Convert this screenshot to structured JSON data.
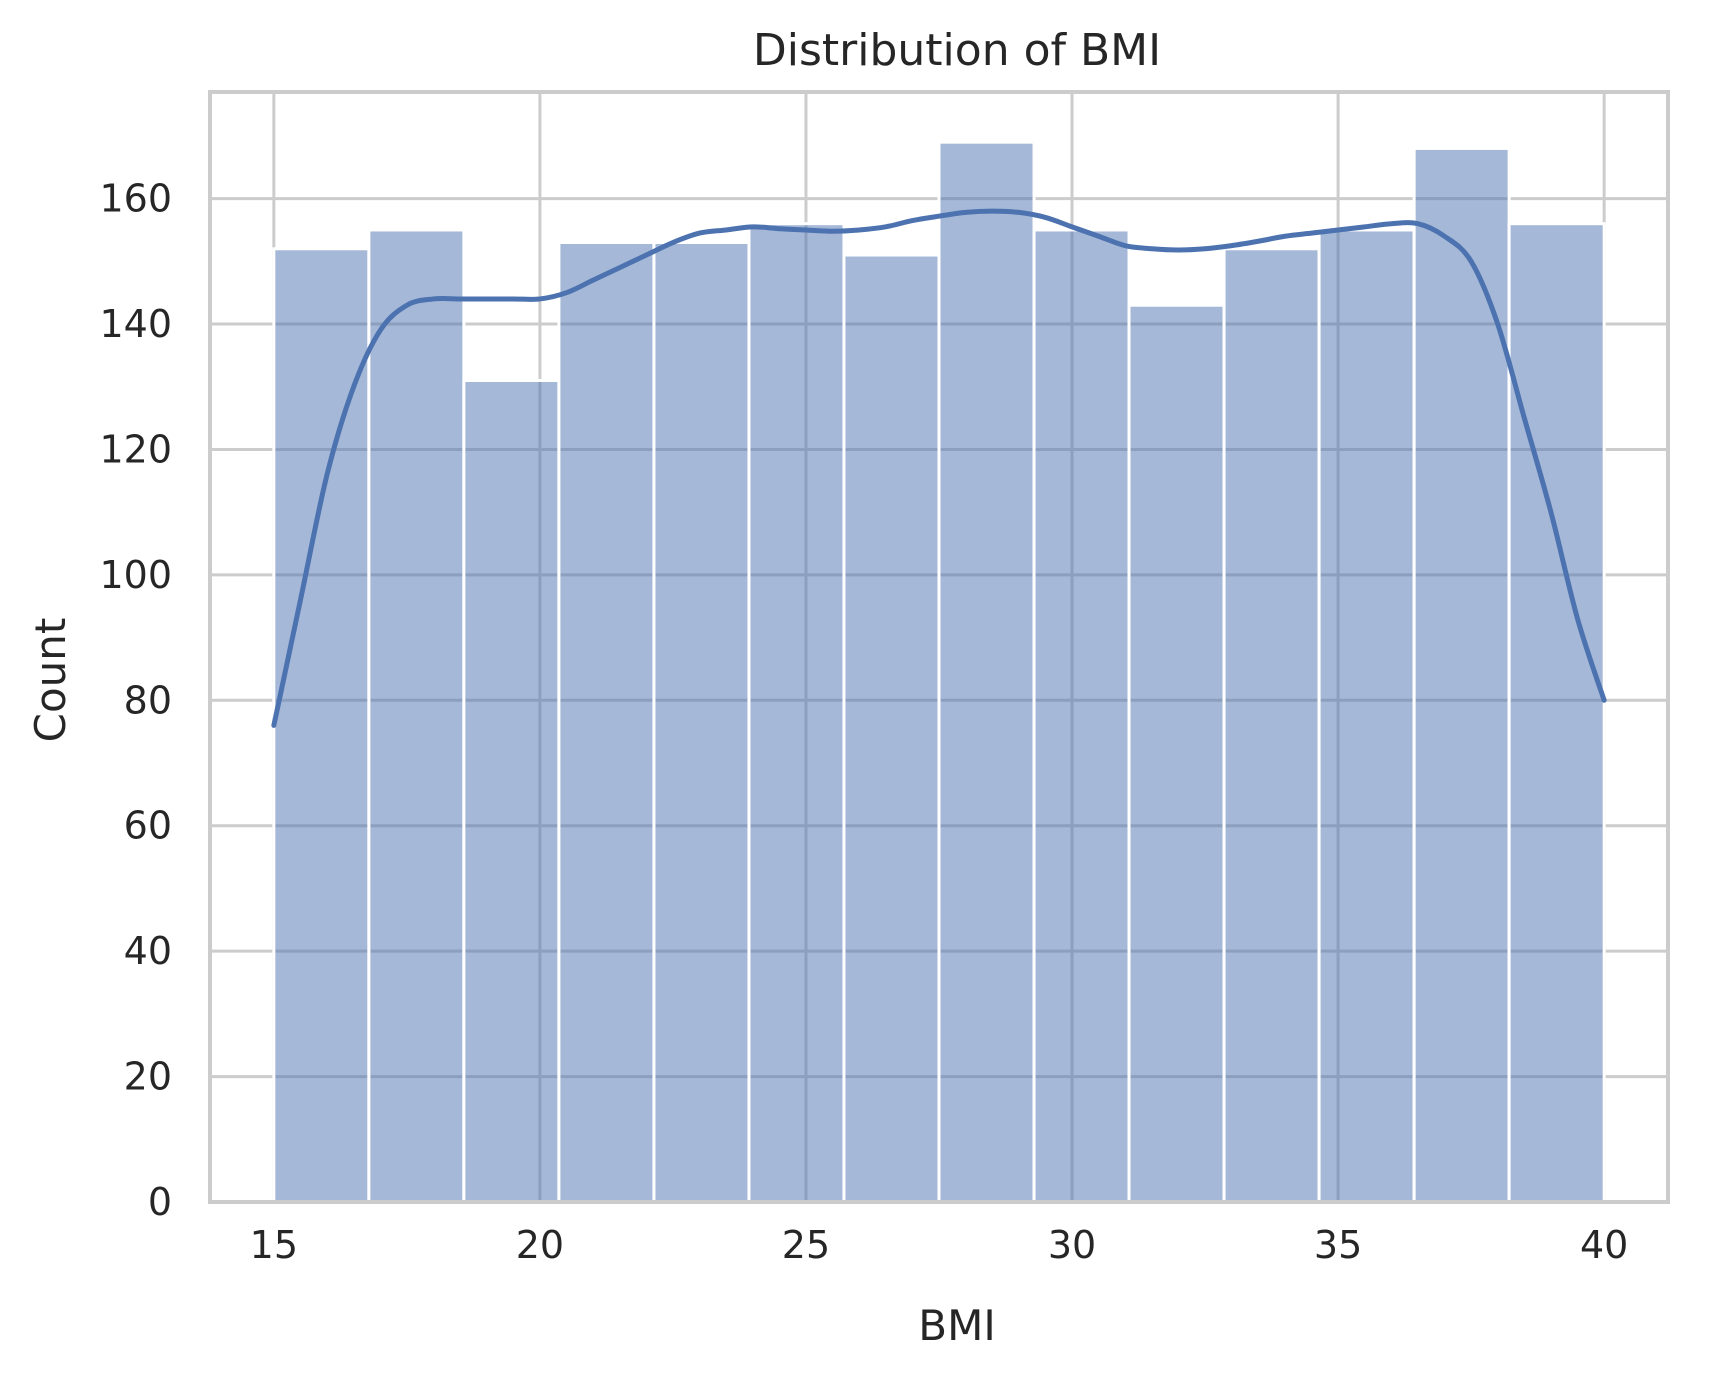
{
  "chart_data": {
    "type": "bar",
    "subtype": "histogram-with-kde",
    "title": "Distribution of BMI",
    "xlabel": "BMI",
    "ylabel": "Count",
    "xlim": [
      13.8,
      41.2
    ],
    "ylim": [
      0,
      177
    ],
    "x_ticks": [
      15,
      20,
      25,
      30,
      35,
      40
    ],
    "y_ticks": [
      0,
      20,
      40,
      60,
      80,
      100,
      120,
      140,
      160
    ],
    "grid": true,
    "bar_color": "#4c72b0",
    "bar_alpha": 0.5,
    "line_color": "#4c72b0",
    "grid_color": "#cccccc",
    "bins": [
      {
        "x0": 15.0,
        "x1": 16.786,
        "count": 152
      },
      {
        "x0": 16.786,
        "x1": 18.571,
        "count": 155
      },
      {
        "x0": 18.571,
        "x1": 20.357,
        "count": 131
      },
      {
        "x0": 20.357,
        "x1": 22.143,
        "count": 153
      },
      {
        "x0": 22.143,
        "x1": 23.929,
        "count": 153
      },
      {
        "x0": 23.929,
        "x1": 25.714,
        "count": 156
      },
      {
        "x0": 25.714,
        "x1": 27.5,
        "count": 151
      },
      {
        "x0": 27.5,
        "x1": 29.286,
        "count": 169
      },
      {
        "x0": 29.286,
        "x1": 31.071,
        "count": 155
      },
      {
        "x0": 31.071,
        "x1": 32.857,
        "count": 143
      },
      {
        "x0": 32.857,
        "x1": 34.643,
        "count": 152
      },
      {
        "x0": 34.643,
        "x1": 36.429,
        "count": 155
      },
      {
        "x0": 36.429,
        "x1": 38.214,
        "count": 168
      },
      {
        "x0": 38.214,
        "x1": 40.0,
        "count": 156
      }
    ],
    "kde": {
      "x": [
        15.0,
        15.5,
        16.0,
        16.5,
        17.0,
        17.5,
        18.0,
        18.5,
        19.0,
        19.5,
        20.0,
        20.5,
        21.0,
        21.5,
        22.0,
        22.5,
        23.0,
        23.5,
        24.0,
        24.5,
        25.0,
        25.5,
        26.0,
        26.5,
        27.0,
        27.5,
        28.0,
        28.5,
        29.0,
        29.5,
        30.0,
        30.5,
        31.0,
        31.5,
        32.0,
        32.5,
        33.0,
        33.5,
        34.0,
        34.5,
        35.0,
        35.5,
        36.0,
        36.5,
        37.0,
        37.5,
        38.0,
        38.5,
        39.0,
        39.5,
        40.0
      ],
      "y": [
        76,
        96,
        116,
        130,
        139,
        143,
        144,
        144,
        144,
        144,
        144,
        145,
        147,
        149,
        151,
        153,
        154.5,
        155,
        155.5,
        155.2,
        155,
        154.8,
        155,
        155.5,
        156.5,
        157.2,
        157.8,
        158,
        157.8,
        157,
        155.5,
        154,
        152.5,
        152,
        151.8,
        152,
        152.5,
        153.2,
        154,
        154.5,
        155,
        155.5,
        156,
        156,
        154,
        150,
        140,
        125,
        110,
        93,
        80
      ]
    }
  }
}
